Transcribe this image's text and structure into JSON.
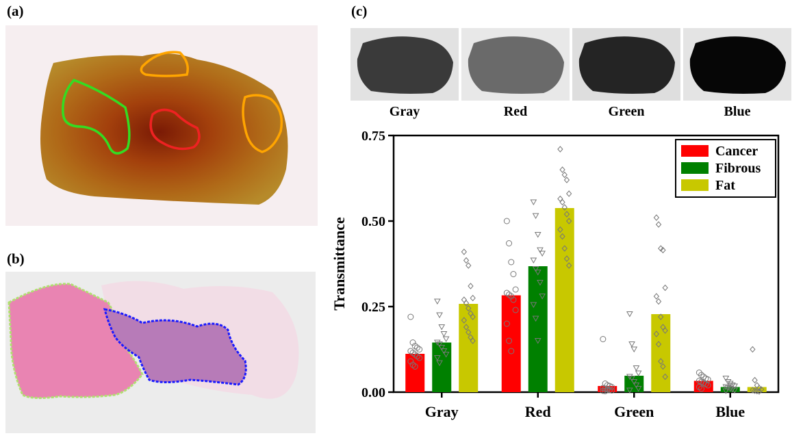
{
  "panels": {
    "a": {
      "label": "(a)"
    },
    "b": {
      "label": "(b)"
    },
    "c": {
      "label": "(c)"
    }
  },
  "channels": [
    "Gray",
    "Red",
    "Green",
    "Blue"
  ],
  "chart_data": {
    "type": "bar",
    "categories": [
      "Gray",
      "Red",
      "Green",
      "Blue"
    ],
    "ylabel": "Transmittance",
    "xlabel": "",
    "ylim": [
      0,
      0.75
    ],
    "yticks": [
      "0.00",
      "0.25",
      "0.50",
      "0.75"
    ],
    "legend_position": "top-right",
    "grid": false,
    "series": [
      {
        "name": "Cancer",
        "color": "#ff0000",
        "marker": "circle",
        "values": [
          0.112,
          0.283,
          0.018,
          0.033
        ],
        "points": [
          [
            0.22,
            0.145,
            0.135,
            0.13,
            0.125,
            0.12,
            0.115,
            0.11,
            0.105,
            0.1,
            0.09,
            0.08,
            0.075
          ],
          [
            0.5,
            0.435,
            0.38,
            0.345,
            0.3,
            0.29,
            0.285,
            0.28,
            0.27,
            0.24,
            0.2,
            0.15,
            0.12
          ],
          [
            0.155,
            0.025,
            0.02,
            0.018,
            0.015,
            0.012,
            0.01,
            0.008,
            0.006,
            0.005,
            0.004,
            0.003
          ],
          [
            0.057,
            0.05,
            0.045,
            0.04,
            0.037,
            0.033,
            0.03,
            0.027,
            0.024,
            0.02,
            0.015,
            0.01
          ]
        ]
      },
      {
        "name": "Fibrous",
        "color": "#008000",
        "marker": "triangle",
        "values": [
          0.145,
          0.368,
          0.048,
          0.015
        ],
        "points": [
          [
            0.265,
            0.225,
            0.19,
            0.17,
            0.155,
            0.145,
            0.14,
            0.13,
            0.12,
            0.11,
            0.1,
            0.085
          ],
          [
            0.555,
            0.515,
            0.46,
            0.415,
            0.405,
            0.385,
            0.36,
            0.35,
            0.32,
            0.28,
            0.255,
            0.215,
            0.15
          ],
          [
            0.228,
            0.14,
            0.125,
            0.07,
            0.055,
            0.045,
            0.04,
            0.03,
            0.02,
            0.01,
            0.005
          ],
          [
            0.04,
            0.03,
            0.025,
            0.02,
            0.017,
            0.015,
            0.012,
            0.01,
            0.008,
            0.005,
            0.003
          ]
        ]
      },
      {
        "name": "Fat",
        "color": "#c8c800",
        "marker": "diamond",
        "values": [
          0.258,
          0.538,
          0.228,
          0.015
        ],
        "points": [
          [
            0.41,
            0.385,
            0.37,
            0.31,
            0.275,
            0.27,
            0.26,
            0.245,
            0.23,
            0.22,
            0.21,
            0.19,
            0.175,
            0.16,
            0.15
          ],
          [
            0.71,
            0.65,
            0.635,
            0.62,
            0.58,
            0.565,
            0.555,
            0.54,
            0.52,
            0.5,
            0.475,
            0.455,
            0.42,
            0.39,
            0.37
          ],
          [
            0.51,
            0.49,
            0.42,
            0.415,
            0.305,
            0.28,
            0.265,
            0.22,
            0.19,
            0.18,
            0.17,
            0.14,
            0.09,
            0.075,
            0.045
          ],
          [
            0.125,
            0.035,
            0.02,
            0.012,
            0.008,
            0.006,
            0.004,
            0.003,
            0.002
          ]
        ]
      }
    ]
  },
  "colors": {
    "region_green": "#33dd22",
    "region_red": "#ee2222",
    "region_orange": "#ffa500",
    "boundary_blue": "#1a1aff",
    "boundary_yellow_green": "#b0e070"
  }
}
